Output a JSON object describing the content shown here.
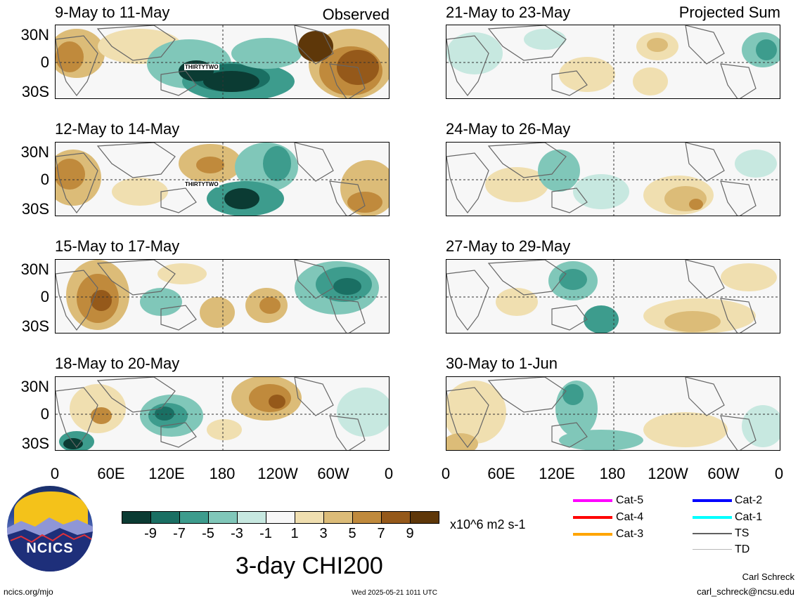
{
  "panels": {
    "observed": [
      {
        "title": "9-May to 11-May",
        "corner": "Observed",
        "storm": "THIRTYTWO"
      },
      {
        "title": "12-May to 14-May",
        "corner": "",
        "storm": "THIRTYTWO"
      },
      {
        "title": "15-May to 17-May",
        "corner": "",
        "storm": ""
      },
      {
        "title": "18-May to 20-May",
        "corner": "",
        "storm": ""
      }
    ],
    "projected": [
      {
        "title": "21-May to 23-May",
        "corner": "Projected Sum"
      },
      {
        "title": "24-May to 26-May",
        "corner": ""
      },
      {
        "title": "27-May to 29-May",
        "corner": ""
      },
      {
        "title": "30-May to 1-Jun",
        "corner": ""
      }
    ]
  },
  "axes": {
    "lat_labels": [
      "30N",
      "0",
      "30S"
    ],
    "lon_labels": [
      "0",
      "60E",
      "120E",
      "180",
      "120W",
      "60W",
      "0"
    ]
  },
  "colorbar": {
    "tick_labels": [
      "-9",
      "-7",
      "-5",
      "-3",
      "-1",
      "1",
      "3",
      "5",
      "7",
      "9"
    ],
    "units": "x10^6 m2 s-1",
    "colors": [
      "#0b3b33",
      "#1a6f63",
      "#3d9c8d",
      "#80c7b9",
      "#c7e8e0",
      "#f7f7f7",
      "#f0dfb0",
      "#dcbc78",
      "#c08a3c",
      "#95591a",
      "#5e3709"
    ]
  },
  "legend": {
    "items": [
      {
        "label": "Cat-5",
        "color": "#ff00ff"
      },
      {
        "label": "Cat-4",
        "color": "#ff0000"
      },
      {
        "label": "Cat-3",
        "color": "#ffa500"
      },
      {
        "label": "Cat-2",
        "color": "#0000ff"
      },
      {
        "label": "Cat-1",
        "color": "#00ffff"
      },
      {
        "label": "TS",
        "color": "#606060"
      },
      {
        "label": "TD",
        "color": "#b8b8b8"
      }
    ]
  },
  "logo": {
    "text": "NCICS"
  },
  "title": "3-day CHI200",
  "footer": {
    "left": "ncics.org/mjo",
    "center": "Wed 2025-05-21 1011 UTC",
    "author": "Carl Schreck",
    "email": "carl_schreck@ncsu.edu"
  }
}
